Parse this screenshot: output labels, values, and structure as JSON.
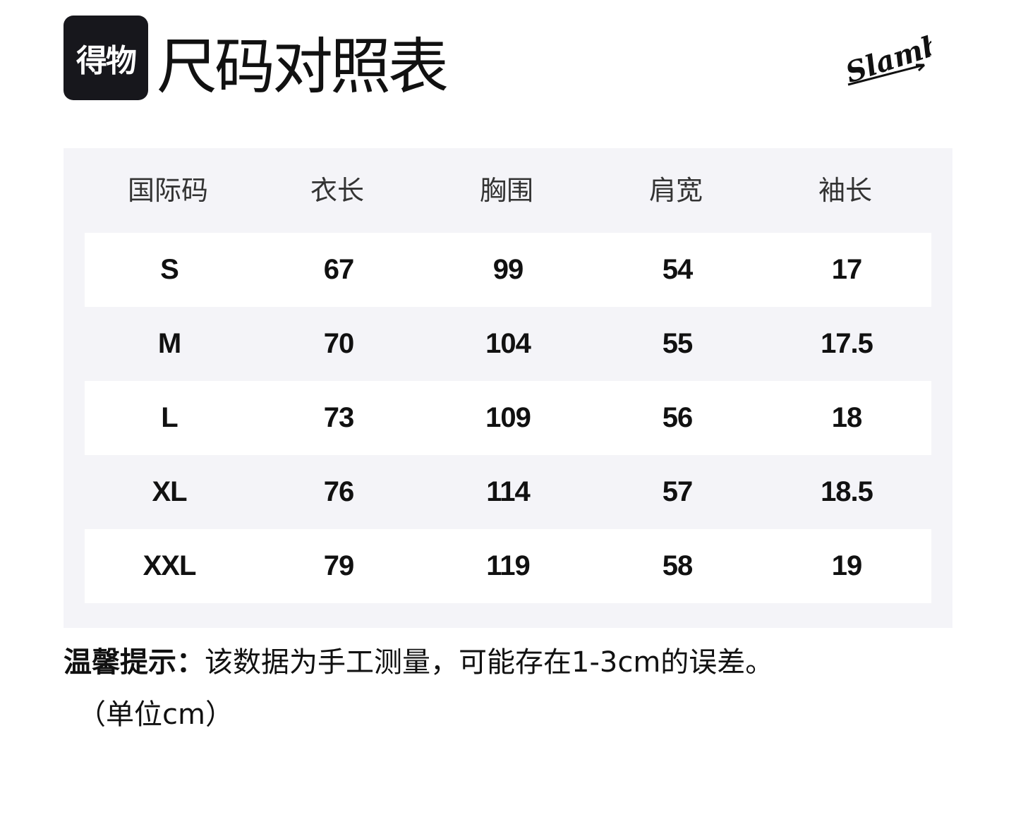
{
  "logo": {
    "text": "得物"
  },
  "title": "尺码对照表",
  "brand": {
    "text": "Slamble"
  },
  "table": {
    "headers": [
      "国际码",
      "衣长",
      "胸围",
      "肩宽",
      "袖长"
    ],
    "rows": [
      [
        "S",
        "67",
        "99",
        "54",
        "17"
      ],
      [
        "M",
        "70",
        "104",
        "55",
        "17.5"
      ],
      [
        "L",
        "73",
        "109",
        "56",
        "18"
      ],
      [
        "XL",
        "76",
        "114",
        "57",
        "18.5"
      ],
      [
        "XXL",
        "79",
        "119",
        "58",
        "19"
      ]
    ]
  },
  "note": {
    "label": "温馨提示：",
    "text": "该数据为手工测量，可能存在1-3cm的误差。",
    "unit": "（单位cm）"
  }
}
